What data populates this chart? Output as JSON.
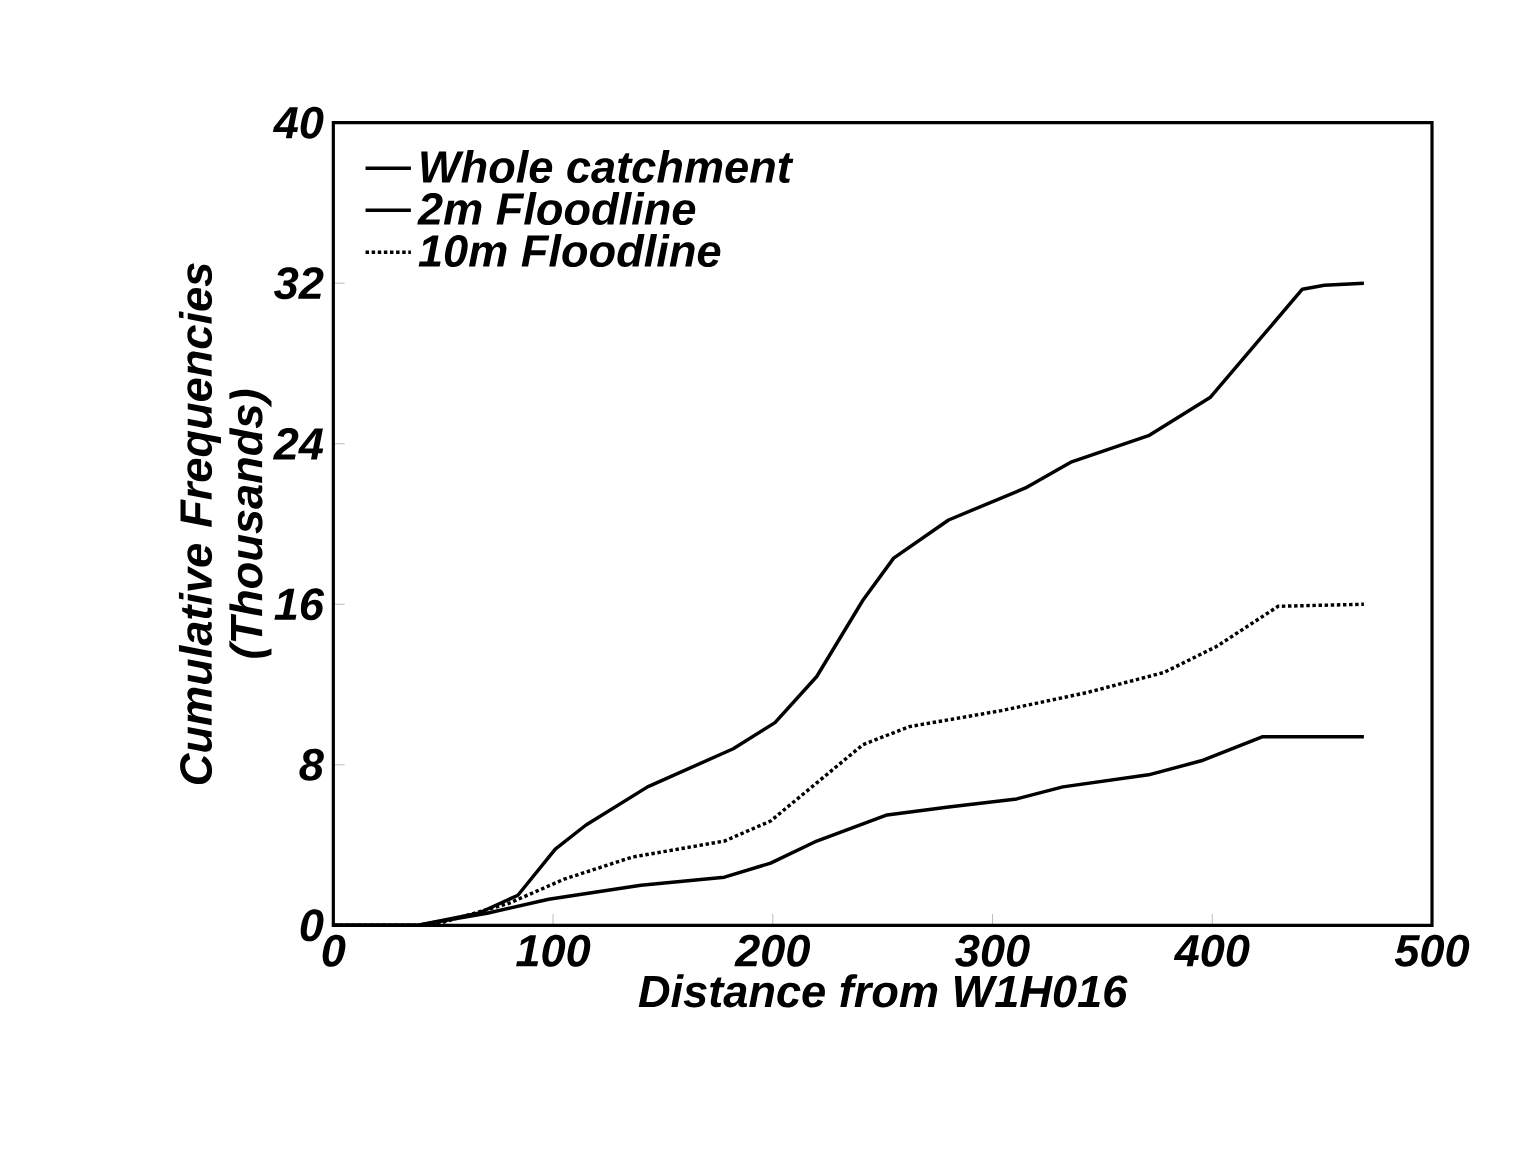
{
  "chart_data": {
    "type": "line",
    "xlabel": "Distance from W1H016",
    "ylabel": "Cumulative Frequencies (Thousands)",
    "xlim": [
      0,
      500
    ],
    "xticks": [
      0,
      100,
      200,
      300,
      400,
      500
    ],
    "ylim": [
      0,
      40
    ],
    "yticks": [
      0,
      8,
      16,
      24,
      32,
      40
    ],
    "legend": "top left",
    "grid": false,
    "marker": "none",
    "series": [
      {
        "name": "Whole catchment",
        "color": "#000000",
        "line_style": "solid",
        "x": [
          0,
          38,
          66,
          84,
          101,
          115,
          143,
          182,
          201,
          220,
          241,
          255,
          280,
          315,
          336,
          371,
          399,
          420,
          441,
          451,
          469
        ],
        "values": [
          0,
          0,
          0.6,
          1.5,
          3.8,
          5.0,
          6.9,
          8.8,
          10.1,
          12.4,
          16.2,
          18.3,
          20.2,
          21.8,
          23.1,
          24.4,
          26.3,
          29.0,
          31.7,
          31.9,
          32.0
        ]
      },
      {
        "name": "2m Floodline",
        "color": "#000000",
        "line_style": "solid",
        "x": [
          0,
          38,
          70,
          98,
          140,
          178,
          199,
          220,
          252,
          280,
          311,
          332,
          371,
          395,
          423,
          469
        ],
        "values": [
          0,
          0,
          0.6,
          1.3,
          2.0,
          2.4,
          3.1,
          4.2,
          5.5,
          5.9,
          6.3,
          6.9,
          7.5,
          8.2,
          9.4,
          9.4
        ]
      },
      {
        "name": "10m Floodline",
        "color": "#000000",
        "line_style": "dotted",
        "x": [
          0,
          45,
          80,
          105,
          136,
          178,
          199,
          220,
          241,
          262,
          304,
          343,
          378,
          402,
          430,
          469
        ],
        "values": [
          0,
          0,
          1.1,
          2.3,
          3.4,
          4.2,
          5.2,
          7.1,
          9.0,
          9.9,
          10.7,
          11.6,
          12.6,
          13.9,
          15.9,
          16.0
        ]
      }
    ]
  }
}
